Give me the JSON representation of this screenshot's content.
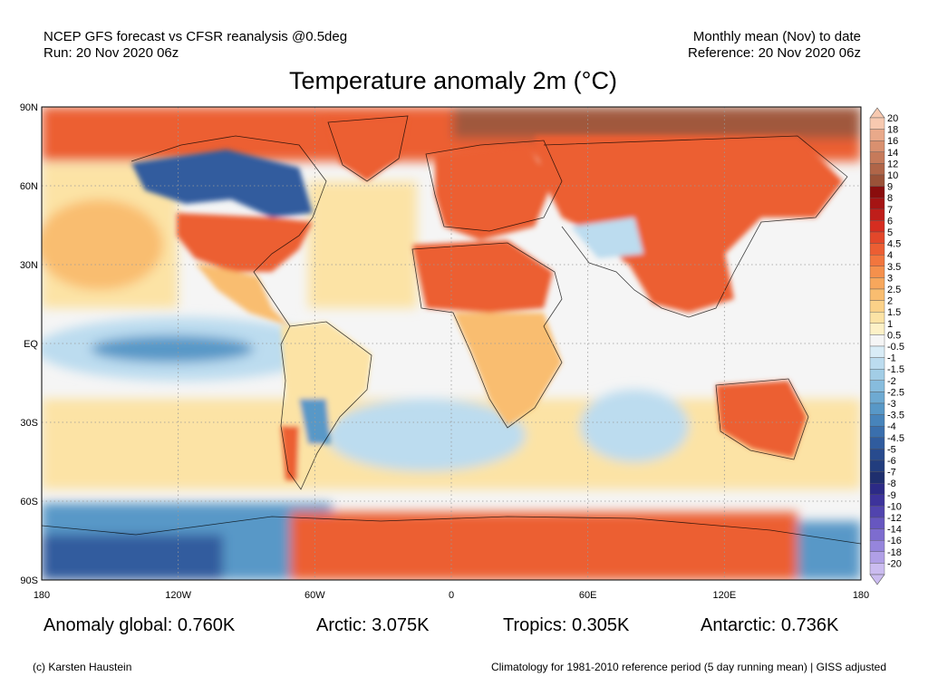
{
  "header": {
    "line1_left": "NCEP GFS forecast vs CFSR reanalysis @0.5deg",
    "line2_left": "Run: 20 Nov 2020 06z",
    "line1_right": "Monthly mean (Nov) to date",
    "line2_right": "Reference: 20 Nov 2020 06z"
  },
  "title": "Temperature anomaly 2m (°C)",
  "axes": {
    "lat_labels": [
      "90N",
      "60N",
      "30N",
      "EQ",
      "30S",
      "60S",
      "90S"
    ],
    "lon_labels": [
      "180",
      "120W",
      "60W",
      "0",
      "60E",
      "120E",
      "180"
    ]
  },
  "colorbar": {
    "levels": [
      "20",
      "18",
      "16",
      "14",
      "12",
      "10",
      "9",
      "8",
      "7",
      "6",
      "5",
      "4.5",
      "4",
      "3.5",
      "3",
      "2.5",
      "2",
      "1.5",
      "1",
      "0.5",
      "-0.5",
      "-1",
      "-1.5",
      "-2",
      "-2.5",
      "-3",
      "-3.5",
      "-4",
      "-4.5",
      "-5",
      "-6",
      "-7",
      "-8",
      "-9",
      "-10",
      "-12",
      "-14",
      "-16",
      "-18",
      "-20"
    ],
    "colors": [
      "#f7c9b0",
      "#e9a98a",
      "#d9906f",
      "#c67a5a",
      "#b06548",
      "#9a5238",
      "#8a0d0d",
      "#a51414",
      "#bf1e1a",
      "#d62d20",
      "#e3472a",
      "#ec5e33",
      "#f2763e",
      "#f5904c",
      "#f7a75c",
      "#f9bd70",
      "#fbd188",
      "#fce3a5",
      "#fdf1c7",
      "#f5f5f5",
      "#d9ecf6",
      "#bcdcef",
      "#a2cde6",
      "#87bcdd",
      "#6eaad2",
      "#5898c7",
      "#4784bb",
      "#3a6fad",
      "#305c9e",
      "#284b8e",
      "#223d7e",
      "#1f2f6e",
      "#2c2a86",
      "#3d339b",
      "#5144ae",
      "#6757c0",
      "#7d6ccf",
      "#9685dc",
      "#b09fe6",
      "#cbbcf0"
    ]
  },
  "stats": {
    "global": "Anomaly global: 0.760K",
    "arctic": "Arctic: 3.075K",
    "tropics": "Tropics: 0.305K",
    "antarctic": "Antarctic: 0.736K"
  },
  "footer": {
    "left": "(c) Karsten Haustein",
    "right": "Climatology for 1981-2010 reference period (5 day running mean) | GISS adjusted"
  },
  "map_colors": {
    "ocean": "#f5f5f5",
    "arctic_high": "#a0583c",
    "warm": "#ec5e33",
    "warm_mid": "#f9bd70",
    "warm_light": "#fce3a5",
    "cold": "#5898c7",
    "cold_deep": "#305c9e",
    "cold_light": "#bcdcef"
  }
}
